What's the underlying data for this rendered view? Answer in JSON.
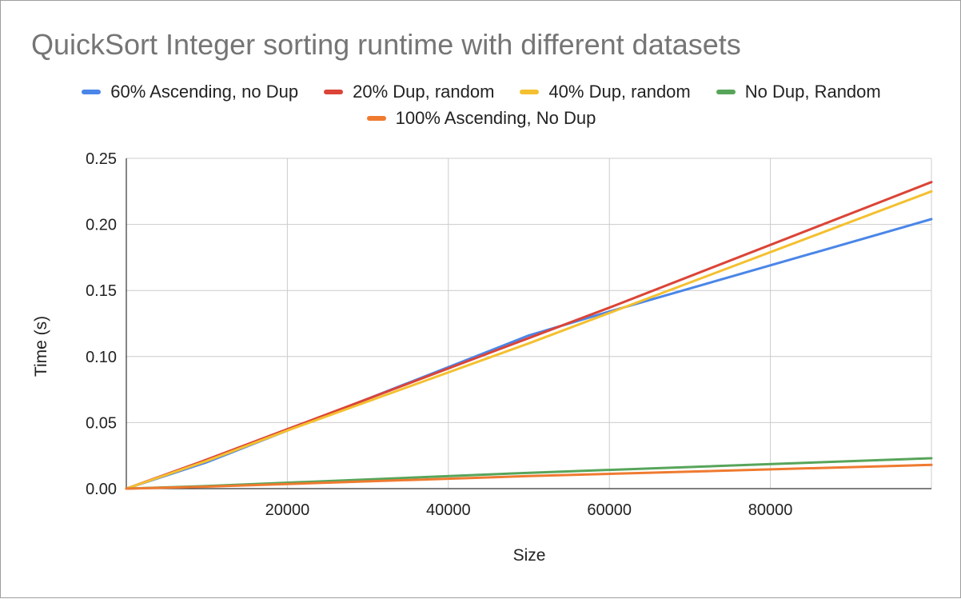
{
  "chart_data": {
    "type": "line",
    "title": "QuickSort Integer sorting runtime with different datasets",
    "xlabel": "Size",
    "ylabel": "Time (s)",
    "xlim": [
      0,
      100000
    ],
    "ylim": [
      0,
      0.25
    ],
    "xticks": [
      20000,
      40000,
      60000,
      80000
    ],
    "xtick_labels": [
      "20000",
      "40000",
      "60000",
      "80000"
    ],
    "yticks": [
      0,
      0.05,
      0.1,
      0.15,
      0.2,
      0.25
    ],
    "ytick_labels": [
      "0.00",
      "0.05",
      "0.10",
      "0.15",
      "0.20",
      "0.25"
    ],
    "grid": true,
    "legend_position": "top",
    "series": [
      {
        "name": "60% Ascending, no Dup",
        "color": "#4a86e8",
        "x": [
          0,
          10000,
          20000,
          50000,
          60000,
          100000
        ],
        "y": [
          0,
          0.02,
          0.044,
          0.116,
          0.134,
          0.204
        ]
      },
      {
        "name": "20% Dup, random",
        "color": "#db4437",
        "x": [
          0,
          10000,
          20000,
          50000,
          60000,
          100000
        ],
        "y": [
          0,
          0.022,
          0.045,
          0.114,
          0.137,
          0.232
        ]
      },
      {
        "name": "40% Dup, random",
        "color": "#f4c030",
        "x": [
          0,
          10000,
          20000,
          50000,
          60000,
          100000
        ],
        "y": [
          0,
          0.021,
          0.044,
          0.11,
          0.133,
          0.225
        ]
      },
      {
        "name": "No Dup, Random",
        "color": "#57a55a",
        "x": [
          0,
          10000,
          50000,
          100000
        ],
        "y": [
          0,
          0.002,
          0.012,
          0.023
        ]
      },
      {
        "name": "100% Ascending, No Dup",
        "color": "#ef7a30",
        "x": [
          0,
          10000,
          50000,
          100000
        ],
        "y": [
          0,
          0.0015,
          0.0095,
          0.018
        ]
      }
    ]
  }
}
